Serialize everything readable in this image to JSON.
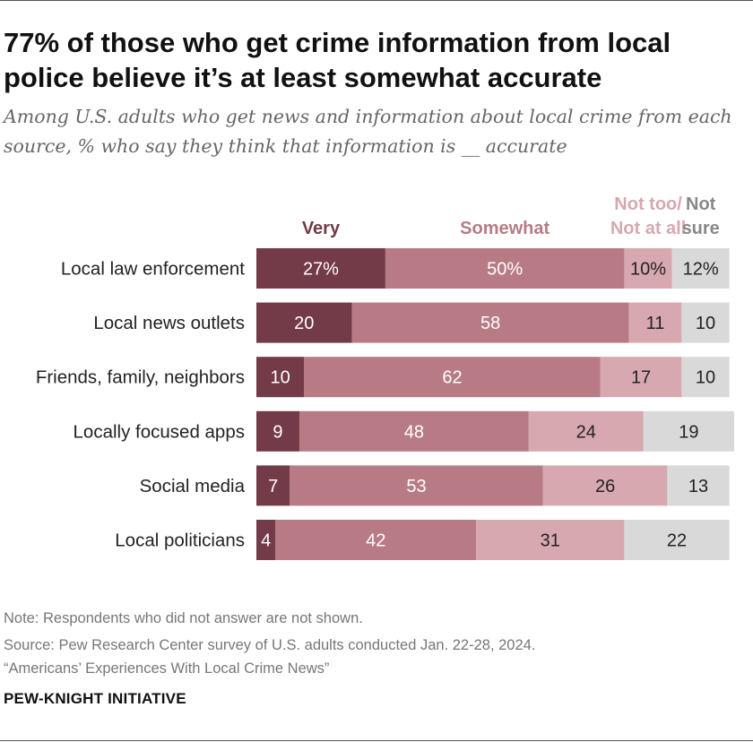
{
  "title": "77% of those who get crime information from local police believe it’s at least somewhat accurate",
  "subtitle": "Among U.S. adults who get news and information about local crime from each source, % who say they think that information is __ accurate",
  "note": "Note: Respondents who did not answer are not shown.",
  "source_line1": "Source: Pew Research Center survey of U.S. adults conducted Jan. 22-28, 2024.",
  "source_line2": "“Americans’ Experiences With Local Crime News”",
  "brand": "PEW-KNIGHT INITIATIVE",
  "colors": {
    "very": "#733a47",
    "somewhat": "#b87b85",
    "not_too": "#d7a8b0",
    "not_sure": "#d9d9d9"
  },
  "chart_data": {
    "type": "bar",
    "orientation": "horizontal-stacked",
    "title": "77% of those who get crime information from local police believe it’s at least somewhat accurate",
    "categories": [
      "Local law enforcement",
      "Local news outlets",
      "Friends, family, neighbors",
      "Locally focused apps",
      "Social media",
      "Local politicians"
    ],
    "series": [
      {
        "name": "Very",
        "label_lines": [
          "Very"
        ],
        "values": [
          27,
          20,
          10,
          9,
          7,
          4
        ],
        "labels": [
          "27%",
          "20",
          "10",
          "9",
          "7",
          "4"
        ]
      },
      {
        "name": "Somewhat",
        "label_lines": [
          "Somewhat"
        ],
        "values": [
          50,
          58,
          62,
          48,
          53,
          42
        ],
        "labels": [
          "50%",
          "58",
          "62",
          "48",
          "53",
          "42"
        ]
      },
      {
        "name": "Not too/ Not at all",
        "label_lines": [
          "Not too/",
          "Not at all"
        ],
        "values": [
          10,
          11,
          17,
          24,
          26,
          31
        ],
        "labels": [
          "10%",
          "11",
          "17",
          "24",
          "26",
          "31"
        ]
      },
      {
        "name": "Not sure",
        "label_lines": [
          "Not",
          "sure"
        ],
        "values": [
          12,
          10,
          10,
          19,
          13,
          22
        ],
        "labels": [
          "12%",
          "10",
          "10",
          "19",
          "13",
          "22"
        ]
      }
    ],
    "xlim": [
      0,
      100
    ],
    "legend": "top"
  }
}
